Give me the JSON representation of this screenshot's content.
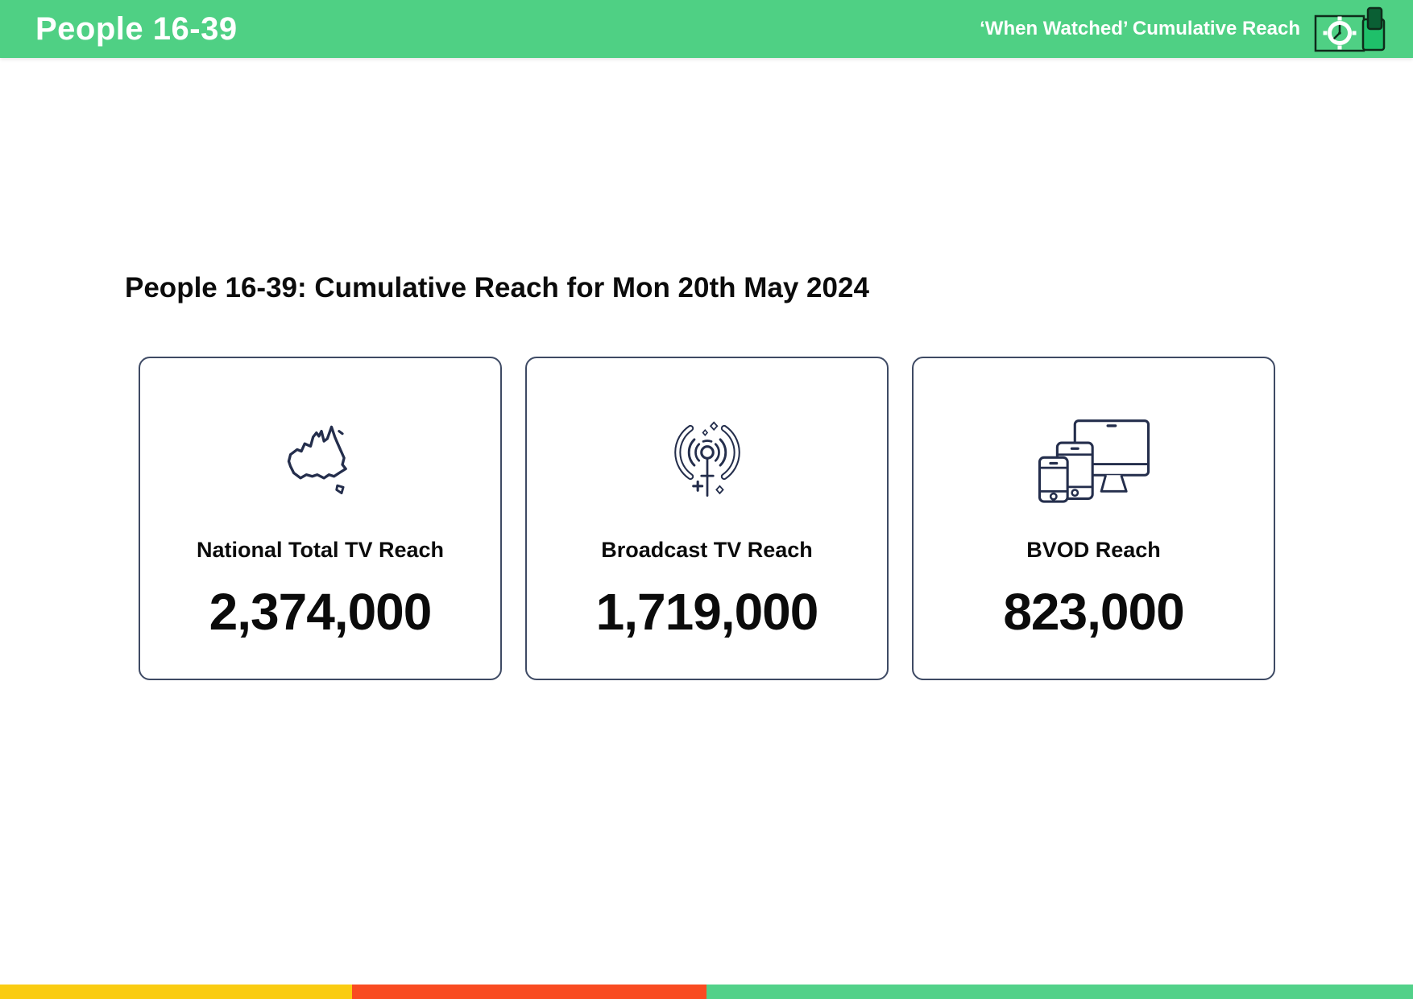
{
  "theme": {
    "accent_green": "#4FD084",
    "icon_navy": "#242E4C",
    "card_border": "#3E4A64",
    "text_black": "#0B0B0B"
  },
  "header": {
    "title": "People 16-39",
    "subtitle": "‘When Watched’ Cumulative Reach",
    "background": "#4FD084",
    "logo_icons": [
      "clock-icon",
      "phone-icon"
    ]
  },
  "main": {
    "heading": "People 16-39: Cumulative Reach for Mon 20th May 2024",
    "cards": [
      {
        "icon": "australia-map-icon",
        "label": "National Total TV Reach",
        "value": "2,374,000"
      },
      {
        "icon": "broadcast-antenna-icon",
        "label": "Broadcast TV Reach",
        "value": "1,719,000"
      },
      {
        "icon": "devices-icon",
        "label": "BVOD Reach",
        "value": "823,000"
      }
    ]
  },
  "footer": {
    "segments": [
      {
        "name": "yellow",
        "color": "#FACC11",
        "width_pct": 24.9
      },
      {
        "name": "red",
        "color": "#F94B21",
        "width_pct": 25.1
      },
      {
        "name": "green",
        "color": "#52D189",
        "width_pct": 50.0
      }
    ]
  }
}
